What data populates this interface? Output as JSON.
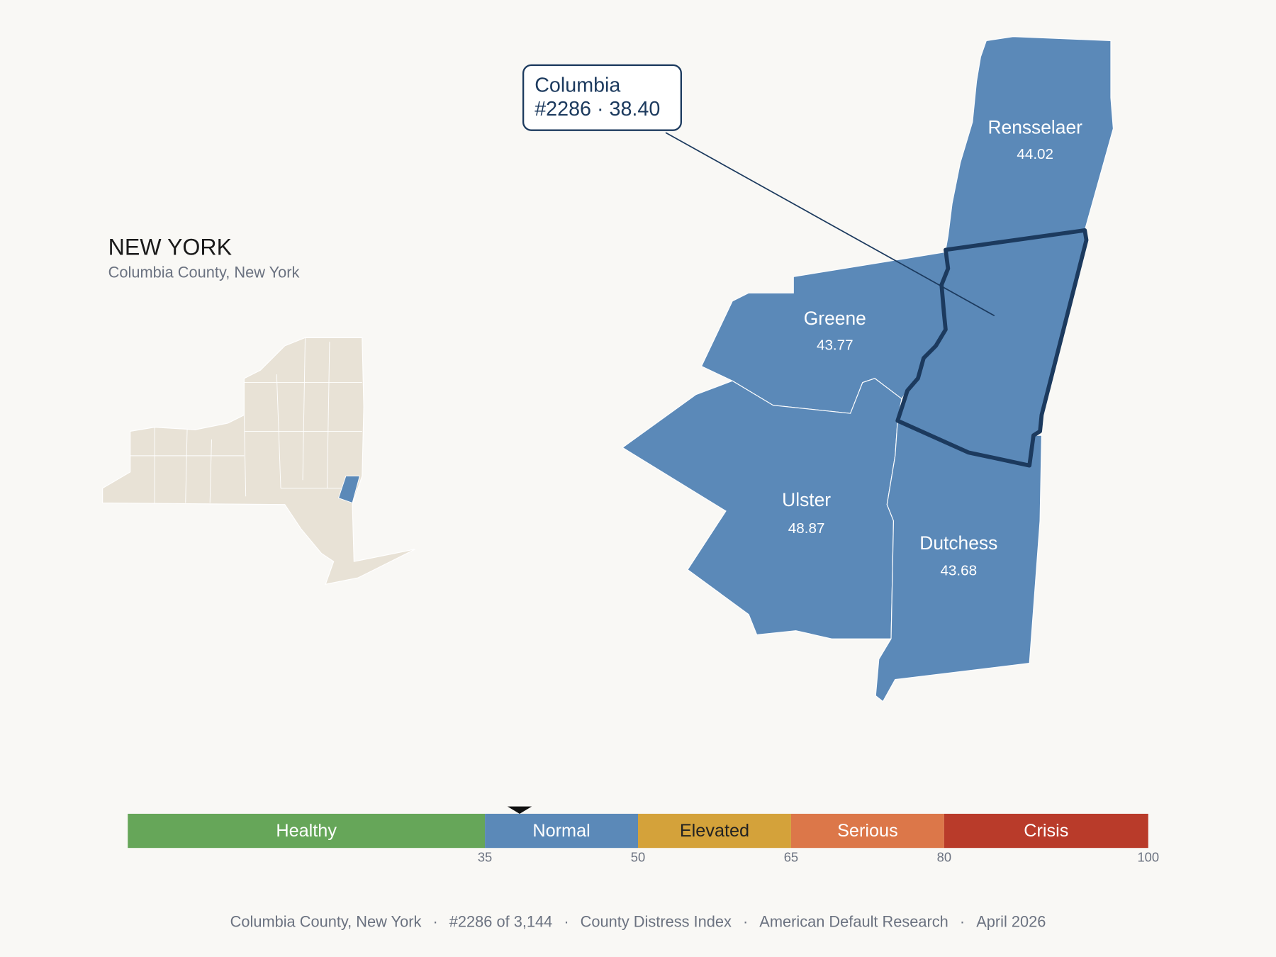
{
  "header": {
    "title": "NEW YORK",
    "subtitle": "Columbia County, New York"
  },
  "separator": "·",
  "callout": {
    "name": "Columbia",
    "rank": "#2286",
    "score": {
      "value": 38.4,
      "label": "38.40"
    }
  },
  "counties": [
    {
      "name": "Rensselaer",
      "value": {
        "value": 44.02,
        "label": "44.02"
      }
    },
    {
      "name": "Greene",
      "value": {
        "value": 43.77,
        "label": "43.77"
      }
    },
    {
      "name": "Ulster",
      "value": {
        "value": 48.87,
        "label": "48.87"
      }
    },
    {
      "name": "Dutchess",
      "value": {
        "value": 43.68,
        "label": "43.68"
      }
    }
  ],
  "scale": {
    "range": [
      0,
      100
    ],
    "ticks": [
      35,
      50,
      65,
      80,
      100
    ],
    "bands": [
      {
        "label": "Healthy",
        "from": 0,
        "to": 35,
        "color": "#66a659",
        "text_color": "#ffffff"
      },
      {
        "label": "Normal",
        "from": 35,
        "to": 50,
        "color": "#5b89b8",
        "text_color": "#ffffff"
      },
      {
        "label": "Elevated",
        "from": 50,
        "to": 65,
        "color": "#d4a23a",
        "text_color": "#222222"
      },
      {
        "label": "Serious",
        "from": 65,
        "to": 80,
        "color": "#dc7749",
        "text_color": "#ffffff"
      },
      {
        "label": "Crisis",
        "from": 80,
        "to": 100,
        "color": "#b93b2a",
        "text_color": "#ffffff"
      }
    ]
  },
  "footer": {
    "items": [
      "Columbia County, New York",
      "#2286 of 3,144",
      "County Distress Index",
      "American Default Research",
      "April 2026"
    ]
  }
}
